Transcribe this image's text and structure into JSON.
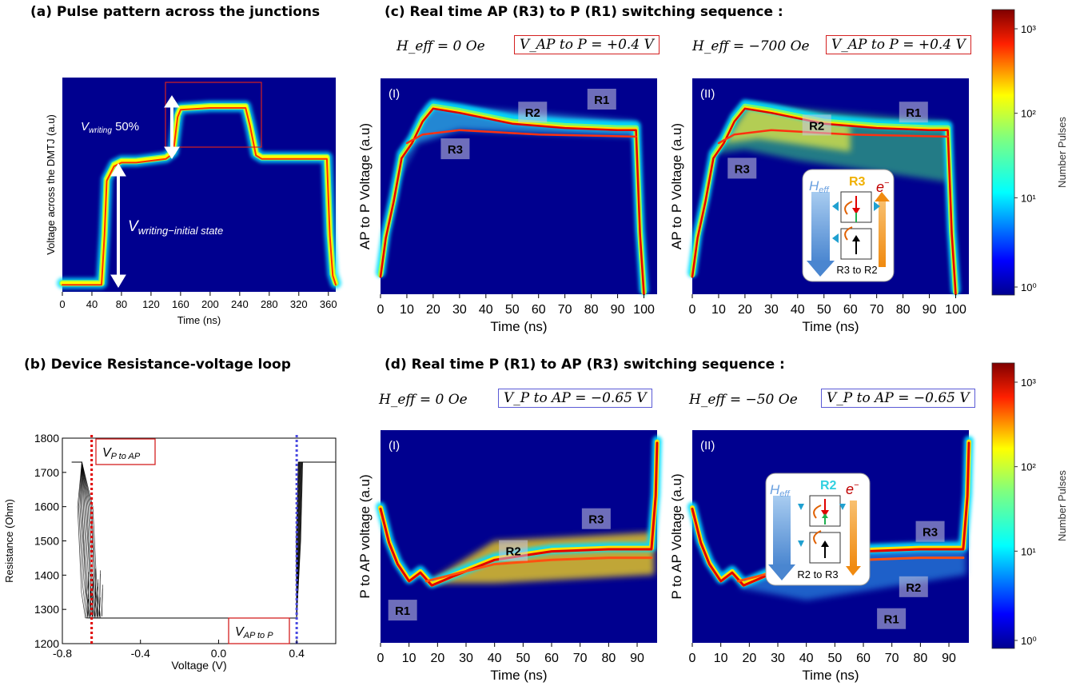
{
  "titles": {
    "a": "(a) Pulse pattern across the junctions",
    "b": "(b) Device  Resistance-voltage loop",
    "c": "(c) Real time AP (R3) to P (R1) switching sequence :",
    "d": "(d) Real time P (R1) to AP (R3) switching sequence :"
  },
  "conditions": {
    "c1_heff": "H_eff = 0 Oe",
    "c1_v": "V_AP to P = +0.4 V",
    "c2_heff": "H_eff = −700 Oe",
    "c2_v": "V_AP to P = +0.4 V",
    "d1_heff": "H_eff = 0 Oe",
    "d1_v": "V_P to AP = −0.65 V",
    "d2_heff": "H_eff = −50 Oe",
    "d2_v": "V_P to AP = −0.65 V"
  },
  "colors": {
    "heatmap_bg": "#00008f",
    "box_red": "#d42020",
    "box_blue": "#5a5ad6",
    "dashed_red": "#e00000",
    "dashed_blue": "#4a4ae0"
  },
  "chart_data": [
    {
      "id": "a",
      "type": "heatmap",
      "title": "",
      "xlabel": "Time (ns)",
      "ylabel": "Voltage across the DMTJ (a.u)",
      "xlim": [
        0,
        370
      ],
      "xticks": [
        0,
        40,
        80,
        120,
        160,
        200,
        240,
        280,
        320,
        360
      ],
      "trace_x": [
        0,
        53,
        57,
        60,
        70,
        80,
        100,
        140,
        150,
        156,
        160,
        200,
        248,
        254,
        262,
        270,
        300,
        358,
        362,
        366,
        370
      ],
      "trace_y": [
        0.03,
        0.03,
        0.3,
        0.6,
        0.68,
        0.7,
        0.7,
        0.72,
        0.75,
        0.95,
        0.99,
        1.0,
        1.0,
        0.9,
        0.74,
        0.72,
        0.72,
        0.72,
        0.3,
        0.08,
        0.03
      ],
      "annotations": [
        "V_writing 50%",
        "V_writing−initial state"
      ]
    },
    {
      "id": "b",
      "type": "line",
      "title": "",
      "xlabel": "Voltage (V)",
      "ylabel": "Resistance (Ohm)",
      "xlim": [
        -0.8,
        0.6
      ],
      "ylim": [
        1200,
        1800
      ],
      "xticks": [
        -0.8,
        -0.4,
        0.0,
        0.4
      ],
      "xtick_labels": [
        "-0.8",
        "-0.4",
        "0.0",
        "0.4"
      ],
      "yticks": [
        1200,
        1300,
        1400,
        1500,
        1600,
        1700,
        1800
      ],
      "series": [
        {
          "values_x": [
            -0.75,
            -0.7,
            -0.68,
            -0.66,
            -0.64,
            0.0,
            0.4,
            0.41,
            0.42,
            0.6
          ],
          "values_y": [
            1730,
            1730,
            1600,
            1350,
            1275,
            1275,
            1275,
            1500,
            1730,
            1730
          ]
        }
      ],
      "switch_v": [
        -0.65,
        0.4
      ],
      "annotations": [
        "V_P to AP",
        "V_AP to P"
      ]
    },
    {
      "id": "c1",
      "type": "heatmap",
      "panel_label": "(I)",
      "xlabel": "Time (ns)",
      "ylabel": "AP to P Voltage (a.u)",
      "xlim": [
        0,
        105
      ],
      "xticks": [
        0,
        10,
        20,
        30,
        40,
        50,
        60,
        70,
        80,
        90,
        100
      ],
      "regions": [
        "R3",
        "R2",
        "R1"
      ]
    },
    {
      "id": "c2",
      "type": "heatmap",
      "panel_label": "(II)",
      "xlabel": "Time (ns)",
      "ylabel": "AP to P Voltage (a.u)",
      "xlim": [
        0,
        105
      ],
      "xticks": [
        0,
        10,
        20,
        30,
        40,
        50,
        60,
        70,
        80,
        90,
        100
      ],
      "regions": [
        "R3",
        "R2",
        "R1"
      ],
      "inset": {
        "heff": "H_eff",
        "state": "R3",
        "electron": "e⁻",
        "caption": "R3 to R2"
      }
    },
    {
      "id": "d1",
      "type": "heatmap",
      "panel_label": "(I)",
      "xlabel": "Time (ns)",
      "ylabel": "P to AP voltage (a.u)",
      "xlim": [
        0,
        97
      ],
      "xticks": [
        0,
        10,
        20,
        30,
        40,
        50,
        60,
        70,
        80,
        90
      ],
      "regions": [
        "R1",
        "R2",
        "R3"
      ]
    },
    {
      "id": "d2",
      "type": "heatmap",
      "panel_label": "(II)",
      "xlabel": "Time (ns)",
      "ylabel": "P to AP Voltage (a.u)",
      "xlim": [
        0,
        97
      ],
      "xticks": [
        0,
        10,
        20,
        30,
        40,
        50,
        60,
        70,
        80,
        90
      ],
      "regions": [
        "R1",
        "R2",
        "R3"
      ],
      "inset": {
        "heff": "H_eff",
        "state": "R2",
        "electron": "e⁻",
        "caption": "R2 to R3"
      }
    },
    {
      "id": "colorbar",
      "type": "heatmap",
      "label": "Number Pulses",
      "scale": "log",
      "ticks": [
        "10⁰",
        "10¹",
        "10²",
        "10³"
      ]
    }
  ]
}
